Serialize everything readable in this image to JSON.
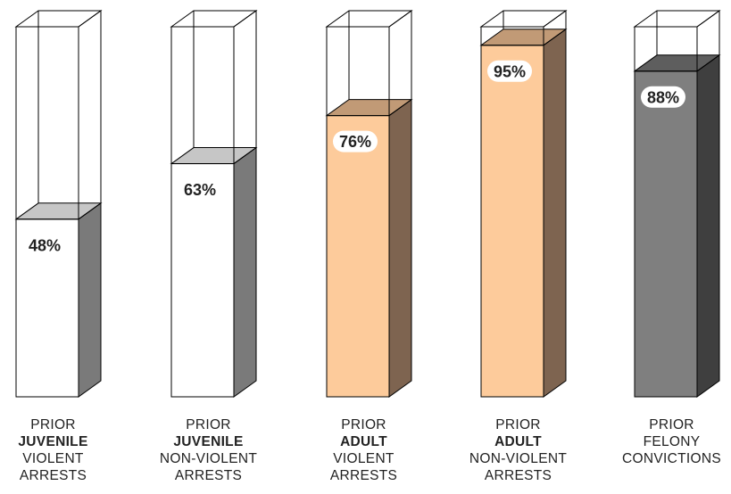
{
  "chart_data": {
    "type": "bar",
    "style": "3d-cylinder-columns",
    "ylim": [
      0,
      100
    ],
    "grid": false,
    "legend": "none",
    "bars": [
      {
        "value": 48,
        "value_label": "48%",
        "label_lines": [
          "PRIOR",
          "JUVENILE",
          "VIOLENT",
          "ARRESTS"
        ],
        "bold_line": 1,
        "front_color": "#ffffff",
        "side_color": "#7a7a7a",
        "top_color": "#c6c6c6"
      },
      {
        "value": 63,
        "value_label": "63%",
        "label_lines": [
          "PRIOR",
          "JUVENILE",
          "NON-VIOLENT",
          "ARRESTS"
        ],
        "bold_line": 1,
        "front_color": "#ffffff",
        "side_color": "#7a7a7a",
        "top_color": "#c6c6c6"
      },
      {
        "value": 76,
        "value_label": "76%",
        "label_lines": [
          "PRIOR",
          "ADULT",
          "VIOLENT",
          "ARRESTS"
        ],
        "bold_line": 1,
        "front_color": "#fdcb9b",
        "side_color": "#7e6450",
        "top_color": "#c19a76"
      },
      {
        "value": 95,
        "value_label": "95%",
        "label_lines": [
          "PRIOR",
          "ADULT",
          "NON-VIOLENT",
          "ARRESTS"
        ],
        "bold_line": 1,
        "front_color": "#fdcb9b",
        "side_color": "#7e6450",
        "top_color": "#c19a76"
      },
      {
        "value": 88,
        "value_label": "88%",
        "label_lines": [
          "PRIOR",
          "FELONY",
          "CONVICTIONS"
        ],
        "bold_line": -1,
        "front_color": "#7f7f7f",
        "side_color": "#3f3f3f",
        "top_color": "#5e5e5e"
      }
    ]
  }
}
